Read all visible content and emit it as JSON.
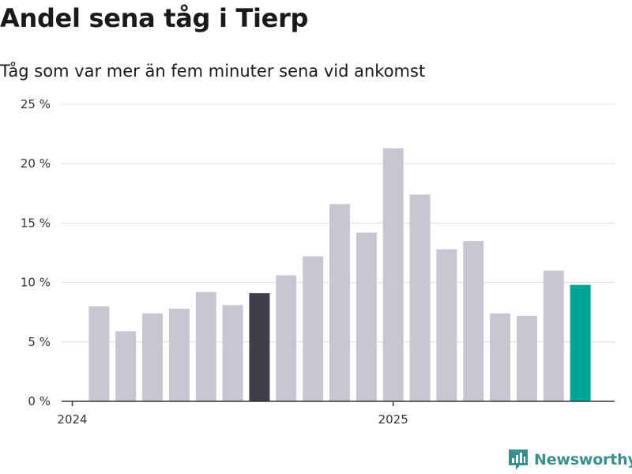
{
  "title": "Andel sena tåg i Tierp",
  "subtitle": "Tåg som var mer än fem minuter sena vid ankomst",
  "brand": "Newsworthy",
  "colors": {
    "default_bar": "#c8c6d1",
    "highlight_bar": "#3f3f4c",
    "latest_bar": "#00a596",
    "grid": "#dddddd",
    "axis": "#333333",
    "brand": "#3a8f8c"
  },
  "chart_data": {
    "type": "bar",
    "title": "Andel sena tåg i Tierp",
    "subtitle": "Tåg som var mer än fem minuter sena vid ankomst",
    "xlabel": "",
    "ylabel": "",
    "ylim": [
      0,
      25
    ],
    "yticks": [
      0,
      5,
      10,
      15,
      20,
      25
    ],
    "ytick_labels": [
      "0 %",
      "5 %",
      "10 %",
      "15 %",
      "20 %",
      "25 %"
    ],
    "x_tick_labels": [
      {
        "label": "2024",
        "at_month": "2024-01"
      },
      {
        "label": "2025",
        "at_month": "2025-01"
      }
    ],
    "categories": [
      "2024-02",
      "2024-03",
      "2024-04",
      "2024-05",
      "2024-06",
      "2024-07",
      "2024-08",
      "2024-09",
      "2024-10",
      "2024-11",
      "2024-12",
      "2025-01",
      "2025-02",
      "2025-03",
      "2025-04",
      "2025-05",
      "2025-06",
      "2025-07",
      "2025-08"
    ],
    "values": [
      8.0,
      5.9,
      7.4,
      7.8,
      9.2,
      8.1,
      9.1,
      10.6,
      12.2,
      16.6,
      14.2,
      21.3,
      17.4,
      12.8,
      13.5,
      7.4,
      7.2,
      11.0,
      9.8
    ],
    "highlight": {
      "2024-08": "highlight_bar",
      "2025-08": "latest_bar"
    },
    "grid": true,
    "legend": "none"
  }
}
